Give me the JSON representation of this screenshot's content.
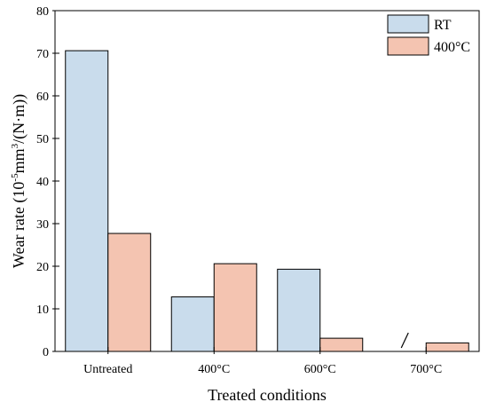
{
  "chart_data": {
    "type": "bar",
    "categories": [
      "Untreated",
      "400°C",
      "600°C",
      "700°C"
    ],
    "series": [
      {
        "name": "RT",
        "values": [
          70.6,
          12.8,
          19.3,
          null
        ],
        "color": "#c9dcec"
      },
      {
        "name": "400°C",
        "values": [
          27.7,
          20.6,
          3.1,
          2.0
        ],
        "color": "#f4c4b1"
      }
    ],
    "xlabel": "Treated conditions",
    "ylabel": {
      "prefix": "Wear rate (10",
      "exp1": "-5",
      "mid": "mm",
      "exp2": "3",
      "suffix": "/(N·m))"
    },
    "ylim": [
      0,
      80
    ],
    "yticks": [
      "0",
      "10",
      "20",
      "30",
      "40",
      "50",
      "60",
      "70",
      "80"
    ],
    "grid": false,
    "legend_position": "top-right",
    "annotations": [
      {
        "text": "/",
        "category": "700°C",
        "series": "RT"
      }
    ]
  }
}
